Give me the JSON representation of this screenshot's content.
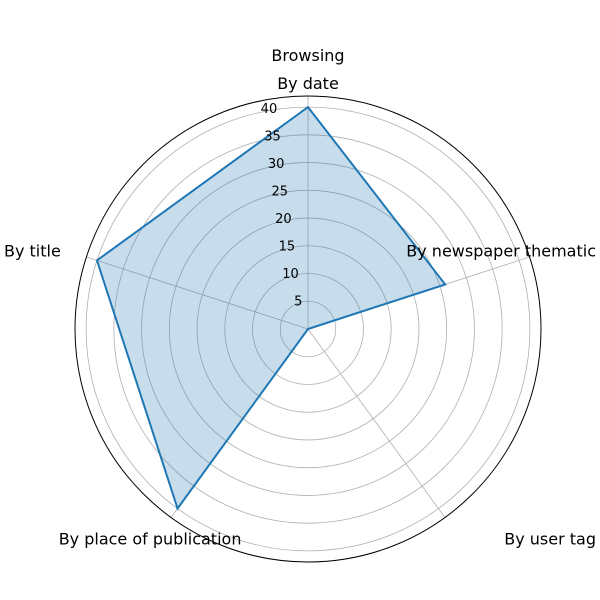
{
  "chart_data": {
    "type": "radar",
    "title": "Browsing",
    "categories": [
      "By date",
      "By newspaper thematic",
      "By user tag",
      "By place of publication",
      "By title"
    ],
    "series": [
      {
        "values": [
          40,
          26,
          0,
          40,
          40
        ]
      }
    ],
    "rlim": [
      0,
      42
    ],
    "rticks": [
      "5",
      "10",
      "15",
      "20",
      "25",
      "30",
      "35",
      "40"
    ],
    "rtick_values": [
      5,
      10,
      15,
      20,
      25,
      30,
      35,
      40
    ],
    "grid": true,
    "colors": {
      "line": "#1f77b4",
      "fill": "#1f77b4",
      "fill_opacity": 0.25,
      "grid": "#b0b0b0"
    }
  }
}
